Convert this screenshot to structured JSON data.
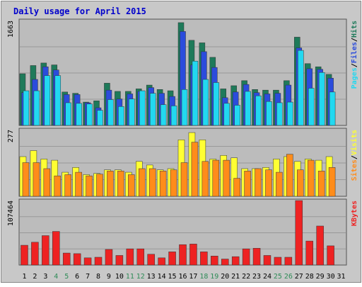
{
  "chart_data": {
    "type": "bar",
    "title": "Daily usage for April 2015",
    "categories": [
      "1",
      "2",
      "3",
      "4",
      "5",
      "6",
      "7",
      "8",
      "9",
      "10",
      "11",
      "12",
      "13",
      "14",
      "15",
      "16",
      "17",
      "18",
      "19",
      "20",
      "21",
      "22",
      "23",
      "24",
      "25",
      "26",
      "27",
      "28",
      "29",
      "30",
      "31"
    ],
    "weekend_days": [
      "4",
      "5",
      "11",
      "12",
      "18",
      "19",
      "25",
      "26"
    ],
    "panels": [
      {
        "id": "hits",
        "max_label": "1663",
        "ymax": 1663,
        "legend": [
          "Pages",
          "Files",
          "Hits"
        ],
        "legend_separator": "/",
        "series": [
          {
            "name": "Hits",
            "color": "#1e7a5a",
            "values": [
              820,
              950,
              990,
              960,
              530,
              510,
              370,
              390,
              670,
              540,
              540,
              580,
              640,
              570,
              550,
              1630,
              1350,
              1310,
              1080,
              580,
              630,
              710,
              570,
              560,
              560,
              710,
              1400,
              980,
              930,
              810,
              0
            ]
          },
          {
            "name": "Files",
            "color": "#2b4cdc",
            "values": [
              520,
              730,
              930,
              880,
              490,
              490,
              360,
              280,
              560,
              420,
              500,
              540,
              600,
              510,
              460,
              1490,
              960,
              1170,
              920,
              440,
              530,
              650,
              520,
              500,
              510,
              640,
              1230,
              900,
              890,
              750,
              0
            ]
          },
          {
            "name": "Pages",
            "color": "#22d8f0",
            "values": [
              550,
              550,
              790,
              790,
              360,
              350,
              340,
              240,
              410,
              300,
              420,
              550,
              510,
              330,
              310,
              570,
              1020,
              730,
              680,
              350,
              320,
              540,
              470,
              380,
              360,
              370,
              1190,
              590,
              840,
              530,
              0
            ]
          }
        ]
      },
      {
        "id": "visits",
        "max_label": "277",
        "ymax": 277,
        "legend": [
          "Sites",
          "Visits"
        ],
        "legend_separator": "/",
        "series": [
          {
            "name": "Visits",
            "color": "#ffff33",
            "values": [
              165,
              190,
              155,
              150,
              100,
              120,
              90,
              95,
              110,
              110,
              100,
              145,
              130,
              110,
              115,
              235,
              265,
              235,
              155,
              170,
              160,
              115,
              115,
              120,
              155,
              165,
              145,
              155,
              150,
              165,
              0
            ]
          },
          {
            "name": "Sites",
            "color": "#ff8c1a",
            "values": [
              140,
              140,
              115,
              85,
              90,
              100,
              85,
              92,
              105,
              105,
              90,
              115,
              115,
              105,
              110,
              140,
              225,
              145,
              150,
              150,
              75,
              105,
              115,
              110,
              100,
              175,
              110,
              150,
              105,
              120,
              0
            ]
          }
        ]
      },
      {
        "id": "kbytes",
        "max_label": "107464",
        "ymax": 107464,
        "legend": [
          "KBytes"
        ],
        "legend_separator": "/",
        "series": [
          {
            "name": "KBytes",
            "color": "#ee2222",
            "values": [
              33000,
              38000,
              49000,
              56000,
              20000,
              19000,
              12000,
              13000,
              26000,
              16000,
              27000,
              27000,
              18000,
              12000,
              22000,
              34000,
              35000,
              22000,
              15000,
              10000,
              14000,
              27000,
              28000,
              16000,
              13000,
              13000,
              107464,
              40000,
              65000,
              32000,
              0
            ]
          }
        ]
      }
    ]
  }
}
